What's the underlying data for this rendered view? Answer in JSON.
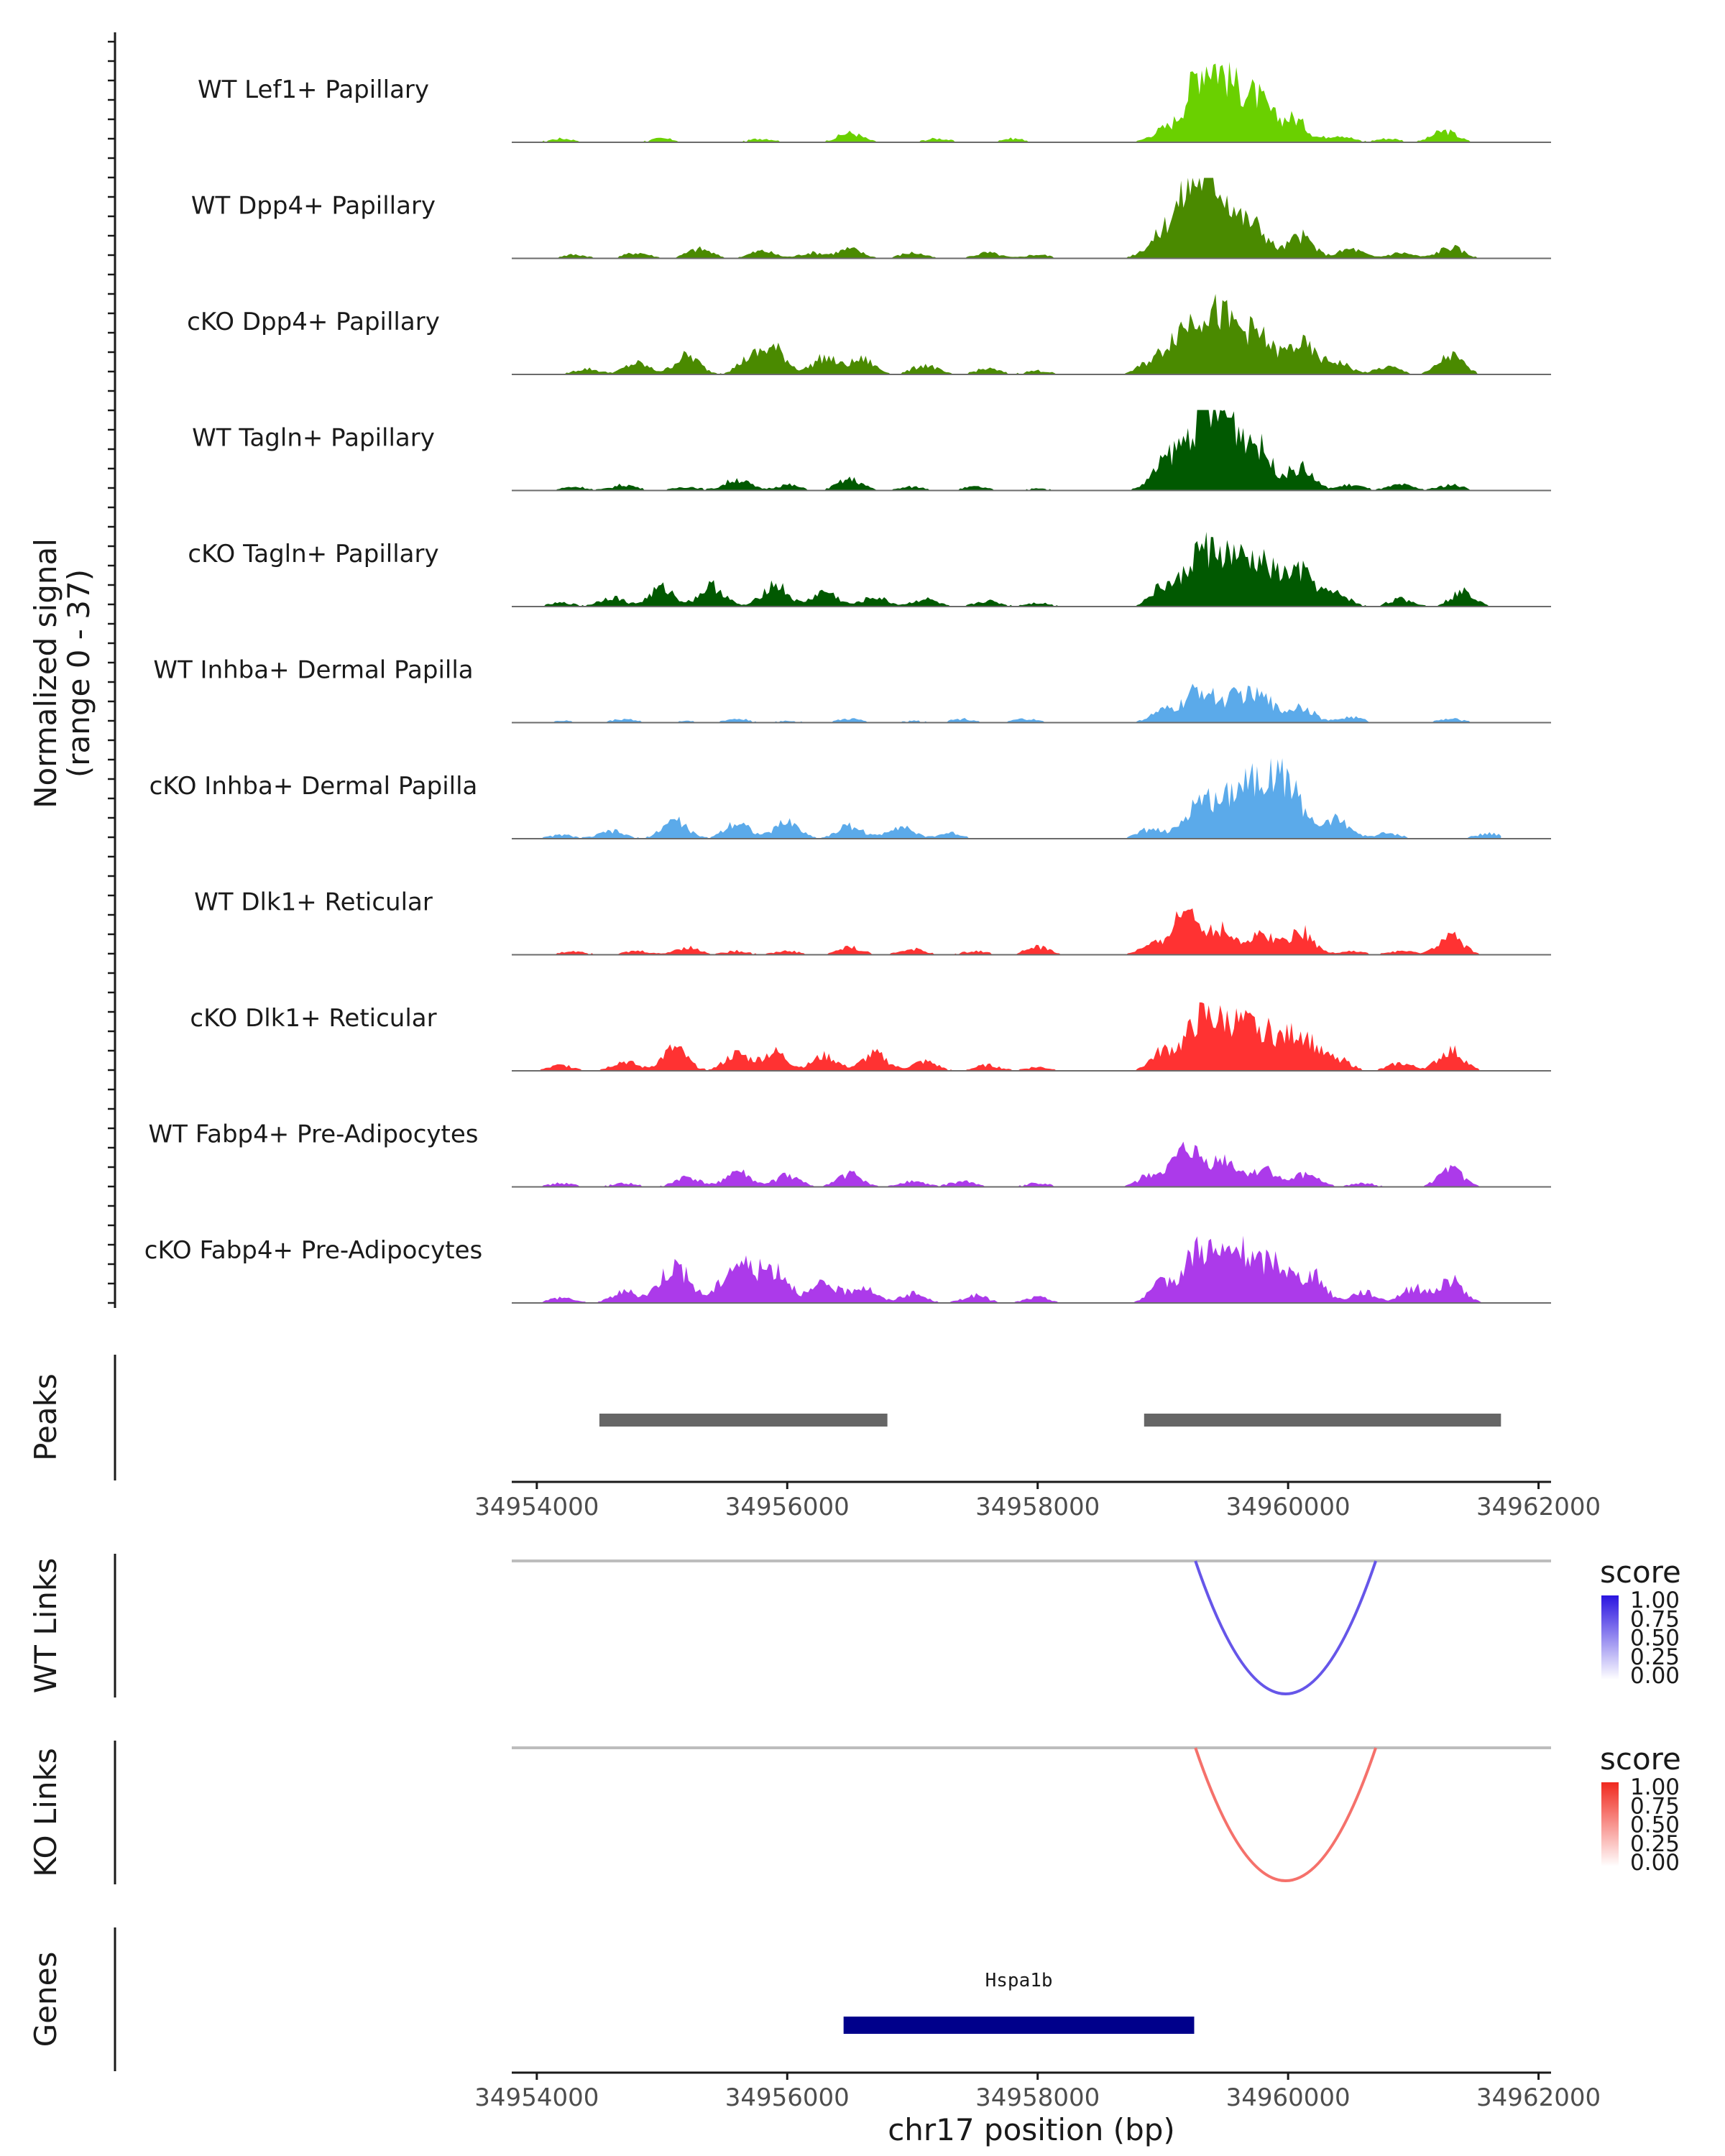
{
  "chart_data": {
    "type": "area",
    "title": "",
    "genome": {
      "chrom": "chr17",
      "xlabel": "chr17 position (bp)",
      "xlim": [
        34953800,
        34962100
      ],
      "ticks": [
        34954000,
        34956000,
        34958000,
        34960000,
        34962000
      ],
      "tick_labels": [
        "34954000",
        "34956000",
        "34958000",
        "34960000",
        "34962000"
      ]
    },
    "coverage": {
      "ylabel_line1": "Normalized signal",
      "ylabel_line2": "(range 0 - 37)",
      "ylim": [
        0,
        37
      ],
      "tracks": [
        {
          "name": "WT Lef1+ Papillary",
          "color": "#6ad000",
          "peaks": [
            [
              34954200,
              2
            ],
            [
              34955000,
              2
            ],
            [
              34955800,
              2
            ],
            [
              34956500,
              5
            ],
            [
              34957200,
              2
            ],
            [
              34957800,
              2
            ],
            [
              34959000,
              6
            ],
            [
              34959300,
              34
            ],
            [
              34959500,
              26
            ],
            [
              34959750,
              22
            ],
            [
              34960050,
              12
            ],
            [
              34960400,
              4
            ],
            [
              34960800,
              2
            ],
            [
              34961250,
              6
            ]
          ]
        },
        {
          "name": "WT Dpp4+ Papillary",
          "color": "#4a8a00",
          "peaks": [
            [
              34954300,
              2
            ],
            [
              34954800,
              3
            ],
            [
              34955300,
              5
            ],
            [
              34955800,
              4
            ],
            [
              34956200,
              3
            ],
            [
              34956500,
              5
            ],
            [
              34957000,
              3
            ],
            [
              34957600,
              3
            ],
            [
              34958000,
              2
            ],
            [
              34958900,
              4
            ],
            [
              34959100,
              18
            ],
            [
              34959300,
              34
            ],
            [
              34959500,
              26
            ],
            [
              34959750,
              15
            ],
            [
              34960100,
              12
            ],
            [
              34960500,
              5
            ],
            [
              34960900,
              3
            ],
            [
              34961300,
              6
            ]
          ]
        },
        {
          "name": "cKO Dpp4+ Papillary",
          "color": "#4a8a00",
          "peaks": [
            [
              34954400,
              3
            ],
            [
              34954800,
              6
            ],
            [
              34955200,
              10
            ],
            [
              34955700,
              8
            ],
            [
              34955900,
              13
            ],
            [
              34956300,
              9
            ],
            [
              34956600,
              8
            ],
            [
              34957100,
              5
            ],
            [
              34957600,
              3
            ],
            [
              34958000,
              2
            ],
            [
              34958900,
              6
            ],
            [
              34959100,
              15
            ],
            [
              34959300,
              26
            ],
            [
              34959500,
              22
            ],
            [
              34959750,
              20
            ],
            [
              34960100,
              16
            ],
            [
              34960400,
              6
            ],
            [
              34960800,
              4
            ],
            [
              34961300,
              10
            ]
          ]
        },
        {
          "name": "WT Tagln+ Papillary",
          "color": "#015901",
          "peaks": [
            [
              34954300,
              2
            ],
            [
              34954700,
              3
            ],
            [
              34955200,
              2
            ],
            [
              34955600,
              6
            ],
            [
              34956000,
              3
            ],
            [
              34956500,
              6
            ],
            [
              34957000,
              2
            ],
            [
              34957500,
              2
            ],
            [
              34958000,
              1
            ],
            [
              34959050,
              16
            ],
            [
              34959300,
              30
            ],
            [
              34959500,
              32
            ],
            [
              34959750,
              22
            ],
            [
              34960100,
              12
            ],
            [
              34960500,
              3
            ],
            [
              34960900,
              3
            ],
            [
              34961300,
              3
            ]
          ]
        },
        {
          "name": "cKO Tagln+ Papillary",
          "color": "#015901",
          "peaks": [
            [
              34954200,
              2
            ],
            [
              34954600,
              5
            ],
            [
              34955000,
              10
            ],
            [
              34955400,
              11
            ],
            [
              34955900,
              12
            ],
            [
              34956300,
              8
            ],
            [
              34956700,
              5
            ],
            [
              34957100,
              4
            ],
            [
              34957600,
              3
            ],
            [
              34958000,
              2
            ],
            [
              34959000,
              10
            ],
            [
              34959300,
              28
            ],
            [
              34959550,
              22
            ],
            [
              34959800,
              20
            ],
            [
              34960100,
              18
            ],
            [
              34960400,
              6
            ],
            [
              34960900,
              4
            ],
            [
              34961400,
              8
            ]
          ]
        },
        {
          "name": "WT Inhba+ Dermal Papilla",
          "color": "#5baaea",
          "peaks": [
            [
              34954200,
              1
            ],
            [
              34954700,
              2
            ],
            [
              34955200,
              1
            ],
            [
              34955600,
              2
            ],
            [
              34956000,
              1
            ],
            [
              34956500,
              2
            ],
            [
              34957000,
              1
            ],
            [
              34957400,
              2
            ],
            [
              34957900,
              2
            ],
            [
              34959000,
              6
            ],
            [
              34959300,
              18
            ],
            [
              34959600,
              13
            ],
            [
              34959800,
              12
            ],
            [
              34960100,
              9
            ],
            [
              34960500,
              3
            ],
            [
              34961300,
              2
            ]
          ]
        },
        {
          "name": "cKO Inhba+ Dermal Papilla",
          "color": "#5baaea",
          "peaks": [
            [
              34954200,
              2
            ],
            [
              34954600,
              4
            ],
            [
              34955100,
              10
            ],
            [
              34955600,
              9
            ],
            [
              34956000,
              9
            ],
            [
              34956500,
              7
            ],
            [
              34956900,
              7
            ],
            [
              34957300,
              3
            ],
            [
              34958900,
              5
            ],
            [
              34959300,
              20
            ],
            [
              34959600,
              26
            ],
            [
              34959850,
              30
            ],
            [
              34960050,
              18
            ],
            [
              34960400,
              10
            ],
            [
              34960800,
              3
            ],
            [
              34961600,
              3
            ]
          ]
        },
        {
          "name": "WT Dlk1+ Reticular",
          "color": "#ff3232",
          "peaks": [
            [
              34954300,
              2
            ],
            [
              34954800,
              2
            ],
            [
              34955200,
              4
            ],
            [
              34955600,
              2
            ],
            [
              34956000,
              2
            ],
            [
              34956500,
              4
            ],
            [
              34957000,
              3
            ],
            [
              34957500,
              2
            ],
            [
              34958000,
              4
            ],
            [
              34958900,
              4
            ],
            [
              34959200,
              24
            ],
            [
              34959500,
              12
            ],
            [
              34959800,
              11
            ],
            [
              34960100,
              13
            ],
            [
              34960500,
              2
            ],
            [
              34960900,
              2
            ],
            [
              34961300,
              10
            ]
          ]
        },
        {
          "name": "cKO Dlk1+ Reticular",
          "color": "#ff3232",
          "peaks": [
            [
              34954200,
              3
            ],
            [
              34954700,
              5
            ],
            [
              34955100,
              12
            ],
            [
              34955600,
              9
            ],
            [
              34955900,
              10
            ],
            [
              34956300,
              8
            ],
            [
              34956700,
              9
            ],
            [
              34957100,
              5
            ],
            [
              34957600,
              3
            ],
            [
              34958000,
              2
            ],
            [
              34959000,
              10
            ],
            [
              34959300,
              26
            ],
            [
              34959550,
              22
            ],
            [
              34959800,
              20
            ],
            [
              34960100,
              20
            ],
            [
              34960400,
              6
            ],
            [
              34960900,
              4
            ],
            [
              34961300,
              11
            ]
          ]
        },
        {
          "name": "WT Fabp4+ Pre-Adipocytes",
          "color": "#ac3aea",
          "peaks": [
            [
              34954200,
              2
            ],
            [
              34954700,
              2
            ],
            [
              34955200,
              5
            ],
            [
              34955600,
              8
            ],
            [
              34956000,
              6
            ],
            [
              34956500,
              7
            ],
            [
              34957000,
              3
            ],
            [
              34957400,
              3
            ],
            [
              34958000,
              2
            ],
            [
              34958900,
              6
            ],
            [
              34959200,
              19
            ],
            [
              34959500,
              13
            ],
            [
              34959800,
              10
            ],
            [
              34960150,
              7
            ],
            [
              34960600,
              2
            ],
            [
              34961300,
              9
            ]
          ]
        },
        {
          "name": "cKO Fabp4+ Pre-Adipocytes",
          "color": "#ac3aea",
          "peaks": [
            [
              34954200,
              3
            ],
            [
              34954700,
              6
            ],
            [
              34955100,
              20
            ],
            [
              34955600,
              21
            ],
            [
              34955900,
              18
            ],
            [
              34956300,
              10
            ],
            [
              34956600,
              9
            ],
            [
              34957000,
              5
            ],
            [
              34957500,
              4
            ],
            [
              34958000,
              3
            ],
            [
              34959000,
              10
            ],
            [
              34959300,
              30
            ],
            [
              34959600,
              26
            ],
            [
              34959900,
              22
            ],
            [
              34960200,
              14
            ],
            [
              34960600,
              6
            ],
            [
              34961000,
              8
            ],
            [
              34961300,
              12
            ]
          ]
        }
      ]
    },
    "peaks_track": {
      "label": "Peaks",
      "regions": [
        [
          34954500,
          34956800
        ],
        [
          34958850,
          34961700
        ]
      ],
      "color": "#666666"
    },
    "links": [
      {
        "label": "WT Links",
        "legend_title": "score",
        "legend_ticks": [
          "1.00",
          "0.75",
          "0.50",
          "0.25",
          "0.00"
        ],
        "color_high": "#2a14e0",
        "color_low": "#ffffff",
        "arcs": [
          {
            "start": 34959260,
            "end": 34960700,
            "score": 0.72
          }
        ]
      },
      {
        "label": "KO Links",
        "legend_title": "score",
        "legend_ticks": [
          "1.00",
          "0.75",
          "0.50",
          "0.25",
          "0.00"
        ],
        "color_high": "#f0281e",
        "color_low": "#ffffff",
        "arcs": [
          {
            "start": 34959260,
            "end": 34960700,
            "score": 0.66
          }
        ]
      }
    ],
    "genes": {
      "label": "Genes",
      "items": [
        {
          "name": "Hspa1b",
          "start": 34956450,
          "end": 34959250,
          "color": "#00008b"
        }
      ]
    }
  }
}
